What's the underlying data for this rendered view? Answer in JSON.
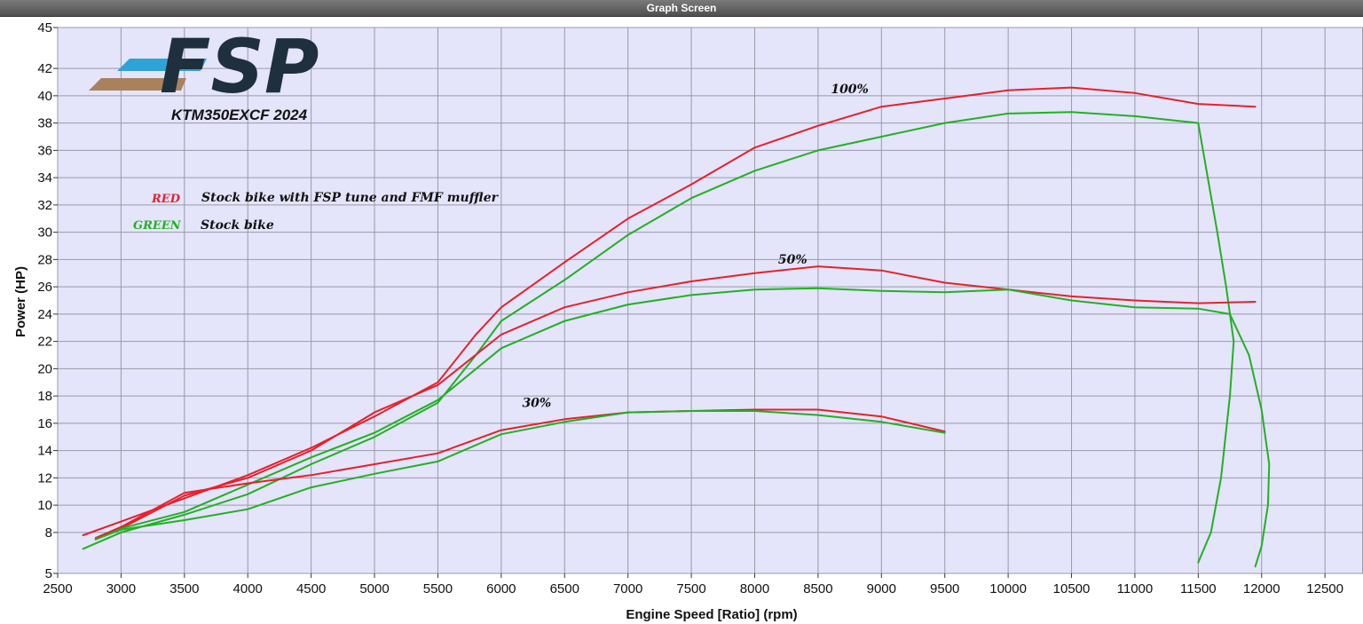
{
  "window": {
    "title": "Graph Screen"
  },
  "logo": {
    "text": "FSP",
    "stripe_colors": [
      "#2ea3d6",
      "#a9825d"
    ]
  },
  "bike_label": "KTM350EXCF 2024",
  "legend": [
    {
      "key": "RED",
      "label": "Stock bike with FSP tune and FMF muffler",
      "color": "#e8202a"
    },
    {
      "key": "GREEN",
      "label": "Stock bike",
      "color": "#22b022"
    }
  ],
  "annotations": [
    {
      "text": "100%",
      "x": 8750,
      "y": 40.2
    },
    {
      "text": "50%",
      "x": 8300,
      "y": 27.7
    },
    {
      "text": "30%",
      "x": 6280,
      "y": 17.2
    }
  ],
  "chart_data": {
    "type": "line",
    "xlabel": "Engine Speed [Ratio] (rpm)",
    "ylabel": "Power (HP)",
    "xlim": [
      2500,
      12800
    ],
    "ylim": [
      5,
      45
    ],
    "x_ticks": [
      2500,
      3000,
      3500,
      4000,
      4500,
      5000,
      5500,
      6000,
      6500,
      7000,
      7500,
      8000,
      8500,
      9000,
      9500,
      10000,
      10500,
      11000,
      11500,
      12000,
      12500
    ],
    "y_ticks": [
      5,
      8,
      10,
      12,
      14,
      16,
      18,
      20,
      22,
      24,
      26,
      28,
      30,
      32,
      34,
      36,
      38,
      40,
      42,
      45
    ],
    "grid": true,
    "series": [
      {
        "name": "RED 100%",
        "color": "#e8202a",
        "x": [
          2700,
          3000,
          3500,
          4000,
          4500,
          5000,
          5500,
          5800,
          6000,
          6500,
          7000,
          7500,
          8000,
          8500,
          9000,
          9500,
          10000,
          10500,
          11000,
          11500,
          11950
        ],
        "y": [
          7.8,
          8.8,
          10.5,
          12.2,
          14.2,
          16.5,
          19,
          22.5,
          24.5,
          27.8,
          31,
          33.5,
          36.2,
          37.8,
          39.2,
          39.8,
          40.4,
          40.6,
          40.2,
          39.4,
          39.2
        ]
      },
      {
        "name": "GREEN 100%",
        "color": "#22b022",
        "x": [
          2700,
          3000,
          3500,
          4000,
          4500,
          5000,
          5500,
          5800,
          6000,
          6500,
          7000,
          7500,
          8000,
          8500,
          9000,
          9500,
          10000,
          10500,
          11000,
          11500,
          11650,
          11720,
          11780,
          11750,
          11680,
          11600,
          11500
        ],
        "y": [
          6.8,
          8.0,
          9.3,
          10.8,
          13.0,
          15.0,
          17.5,
          21.0,
          23.5,
          26.5,
          29.8,
          32.5,
          34.5,
          36.0,
          37.0,
          38.0,
          38.7,
          38.8,
          38.5,
          38.0,
          30,
          26,
          22,
          18,
          12,
          8,
          5.8
        ]
      },
      {
        "name": "RED 50%",
        "color": "#e8202a",
        "x": [
          2800,
          3000,
          3500,
          4000,
          4500,
          5000,
          5500,
          6000,
          6500,
          7000,
          7500,
          8000,
          8500,
          9000,
          9500,
          10000,
          10500,
          11000,
          11500,
          11950
        ],
        "y": [
          7.5,
          8.3,
          10.7,
          12.0,
          14.0,
          16.8,
          18.8,
          22.5,
          24.5,
          25.6,
          26.4,
          27.0,
          27.5,
          27.2,
          26.3,
          25.8,
          25.3,
          25.0,
          24.8,
          24.9
        ]
      },
      {
        "name": "GREEN 50%",
        "color": "#22b022",
        "x": [
          2800,
          3000,
          3500,
          4000,
          4500,
          5000,
          5500,
          6000,
          6500,
          7000,
          7500,
          8000,
          8500,
          9000,
          9500,
          10000,
          10500,
          11000,
          11500,
          11750,
          11900,
          12000,
          12060,
          12050,
          12000,
          11950
        ],
        "y": [
          7.5,
          8.3,
          9.5,
          11.5,
          13.5,
          15.3,
          17.7,
          21.5,
          23.5,
          24.7,
          25.4,
          25.8,
          25.9,
          25.7,
          25.6,
          25.8,
          25.0,
          24.5,
          24.4,
          24.0,
          21,
          17,
          13,
          10,
          7,
          5.5
        ]
      },
      {
        "name": "RED 30%",
        "color": "#e8202a",
        "x": [
          2800,
          3000,
          3500,
          4000,
          4500,
          5000,
          5500,
          6000,
          6500,
          7000,
          7500,
          8000,
          8500,
          9000,
          9500
        ],
        "y": [
          7.6,
          8.4,
          10.9,
          11.6,
          12.2,
          13.0,
          13.8,
          15.5,
          16.3,
          16.8,
          16.9,
          17.0,
          17.0,
          16.5,
          15.4
        ]
      },
      {
        "name": "GREEN 30%",
        "color": "#22b022",
        "x": [
          2800,
          3000,
          3500,
          4000,
          4500,
          5000,
          5500,
          6000,
          6500,
          7000,
          7500,
          8000,
          8500,
          9000,
          9500
        ],
        "y": [
          7.5,
          8.2,
          8.9,
          9.7,
          11.3,
          12.3,
          13.2,
          15.2,
          16.1,
          16.8,
          16.9,
          16.9,
          16.6,
          16.1,
          15.3
        ]
      }
    ]
  }
}
